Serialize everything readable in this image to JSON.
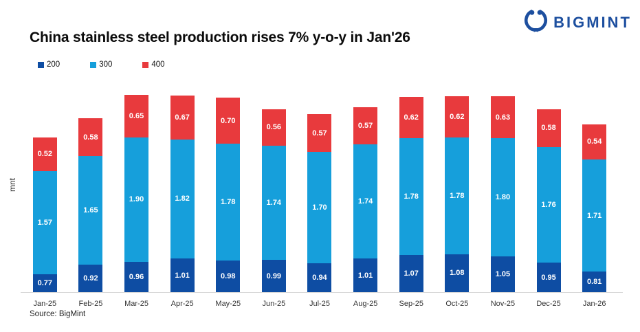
{
  "logo": {
    "text": "BIGMINT",
    "color": "#1d4f9f"
  },
  "footer": {
    "source": "Source: BigMint"
  },
  "chart_data": {
    "type": "bar",
    "stacked": true,
    "title": "China stainless steel production rises 7% y-o-y in Jan'26",
    "ylabel": "mnt",
    "xlabel": "",
    "ylim": [
      0.5,
      3.6
    ],
    "grid": false,
    "legend_position": "top-left",
    "categories": [
      "Jan-25",
      "Feb-25",
      "Mar-25",
      "Apr-25",
      "May-25",
      "Jun-25",
      "Jul-25",
      "Aug-25",
      "Sep-25",
      "Oct-25",
      "Nov-25",
      "Dec-25",
      "Jan-26"
    ],
    "series": [
      {
        "name": "200",
        "color": "#0e4da3",
        "values": [
          0.77,
          0.92,
          0.96,
          1.01,
          0.98,
          0.99,
          0.94,
          1.01,
          1.07,
          1.08,
          1.05,
          0.95,
          0.81
        ]
      },
      {
        "name": "300",
        "color": "#169fdb",
        "values": [
          1.57,
          1.65,
          1.9,
          1.82,
          1.78,
          1.74,
          1.7,
          1.74,
          1.78,
          1.78,
          1.8,
          1.76,
          1.71
        ]
      },
      {
        "name": "400",
        "color": "#e83a3d",
        "values": [
          0.52,
          0.58,
          0.65,
          0.67,
          0.7,
          0.56,
          0.57,
          0.57,
          0.62,
          0.62,
          0.63,
          0.58,
          0.54
        ]
      }
    ]
  }
}
